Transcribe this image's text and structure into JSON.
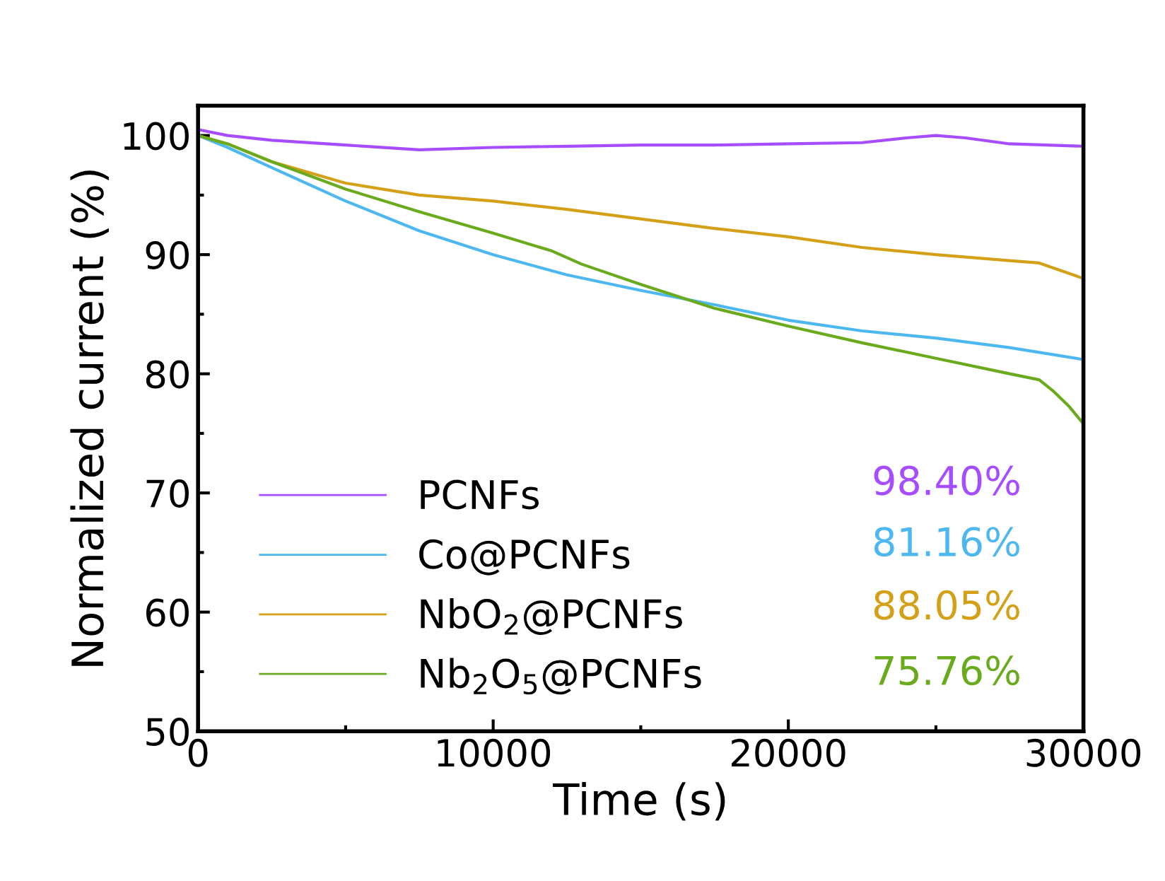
{
  "chart_data": {
    "type": "line",
    "xlabel": "Time (s)",
    "ylabel": "Normalized current (%)",
    "xlim": [
      0,
      30000
    ],
    "ylim": [
      50,
      102.5
    ],
    "xticks": [
      0,
      10000,
      20000,
      30000
    ],
    "yticks": [
      50,
      60,
      70,
      80,
      90,
      100
    ],
    "grid": false,
    "legend": "bottom left",
    "line_style": "solid",
    "marker": "none",
    "series": [
      {
        "name": "PCNFs",
        "color": "#a64dff",
        "x": [
          0,
          1000,
          2500,
          5000,
          7500,
          10000,
          12500,
          15000,
          17500,
          20000,
          22500,
          24000,
          25000,
          26000,
          27500,
          30000
        ],
        "values": [
          100.5,
          100,
          99.6,
          99.2,
          98.8,
          99,
          99.1,
          99.2,
          99.2,
          99.3,
          99.4,
          99.8,
          100,
          99.8,
          99.3,
          99.1
        ]
      },
      {
        "name": "Co@PCNFs",
        "color": "#4db8f0",
        "x": [
          0,
          1000,
          2500,
          5000,
          7500,
          10000,
          12500,
          15000,
          17500,
          20000,
          22500,
          25000,
          27500,
          30000
        ],
        "values": [
          100,
          99,
          97.3,
          94.5,
          92,
          90,
          88.3,
          87,
          85.8,
          84.5,
          83.6,
          83,
          82.2,
          81.2
        ]
      },
      {
        "name": "NbO$_{2}$@PCNFs",
        "color": "#d4a017",
        "x": [
          0,
          1000,
          2500,
          5000,
          7500,
          10000,
          12500,
          15000,
          17500,
          20000,
          22500,
          25000,
          27500,
          28500,
          30000
        ],
        "values": [
          100,
          99.3,
          97.8,
          96,
          95,
          94.5,
          93.8,
          93,
          92.2,
          91.5,
          90.6,
          90,
          89.5,
          89.3,
          88
        ]
      },
      {
        "name": "Nb$_{2}$O$_{5}$@PCNFs",
        "color": "#6aab1e",
        "x": [
          0,
          1000,
          2500,
          5000,
          7500,
          10000,
          12000,
          13000,
          15000,
          17500,
          20000,
          22500,
          25000,
          27500,
          28500,
          29000,
          29500,
          30000
        ],
        "values": [
          100,
          99.3,
          97.8,
          95.5,
          93.6,
          91.8,
          90.3,
          89.2,
          87.5,
          85.5,
          84,
          82.6,
          81.3,
          80,
          79.5,
          78.5,
          77.3,
          75.8
        ]
      }
    ],
    "annotations": [
      "98.40%",
      "81.16%",
      "88.05%",
      "75.76%"
    ]
  }
}
